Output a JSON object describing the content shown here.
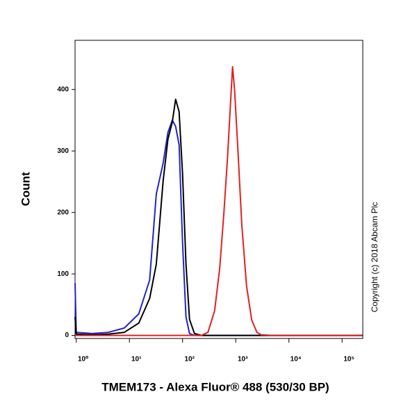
{
  "chart_data": {
    "type": "line",
    "x_label": "TMEM173 - Alexa Fluor® 488 (530/30 BP)",
    "y_label": "Count",
    "annotation": "Copyright (c) 2018 Abcam Plc",
    "xscale": "log",
    "xlim": [
      0.95,
      245000
    ],
    "xticks": [
      {
        "value": 1,
        "label": "10⁰"
      },
      {
        "value": 10,
        "label": "10¹"
      },
      {
        "value": 100,
        "label": "10²"
      },
      {
        "value": 1000,
        "label": "10³"
      },
      {
        "value": 10000,
        "label": "10⁴"
      },
      {
        "value": 100000,
        "label": "10⁵"
      }
    ],
    "ylim": [
      -5,
      480
    ],
    "yticks": [
      0,
      100,
      200,
      300,
      400
    ],
    "x": [
      0.95,
      1,
      2,
      4,
      8,
      15,
      24,
      32,
      43,
      53,
      64,
      74,
      86,
      100,
      116,
      135,
      167,
      225,
      300,
      400,
      500,
      600,
      700,
      800,
      870,
      950,
      1100,
      1300,
      1600,
      2000,
      2500,
      3000,
      5000,
      20000,
      100000,
      240000
    ],
    "series": [
      {
        "color": "#2222cc",
        "values": [
          85,
          5,
          3,
          5,
          12,
          35,
          90,
          230,
          280,
          330,
          350,
          340,
          310,
          150,
          30,
          3,
          0,
          0,
          0,
          0,
          0,
          0,
          0,
          0,
          0,
          0,
          0,
          0,
          0,
          0,
          0,
          0,
          0,
          0,
          0,
          0
        ]
      },
      {
        "color": "#000000",
        "values": [
          30,
          2,
          1,
          2,
          5,
          20,
          60,
          116,
          251,
          319,
          347,
          384,
          364,
          262,
          116,
          26,
          3,
          0,
          0,
          0,
          0,
          0,
          0,
          0,
          0,
          0,
          0,
          0,
          0,
          0,
          0,
          0,
          0,
          0,
          0,
          0
        ]
      },
      {
        "color": "#e02020",
        "values": [
          0,
          0,
          0,
          0,
          0,
          0,
          0,
          0,
          0,
          0,
          0,
          0,
          0,
          0,
          0,
          0,
          0,
          0,
          5,
          40,
          110,
          200,
          290,
          380,
          437,
          400,
          300,
          180,
          80,
          25,
          5,
          1,
          0,
          0,
          0,
          0
        ]
      }
    ]
  }
}
